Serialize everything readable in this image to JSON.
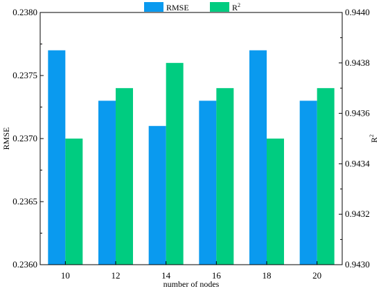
{
  "chart_data": {
    "type": "bar",
    "categories": [
      "10",
      "12",
      "14",
      "16",
      "18",
      "20"
    ],
    "xlabel": "number of nodes",
    "series": [
      {
        "name": "RMSE",
        "axis": "left",
        "color": "#0a9aef",
        "values": [
          0.2377,
          0.2373,
          0.2371,
          0.2373,
          0.2377,
          0.2373
        ]
      },
      {
        "name": "R",
        "name_superscript": "2",
        "axis": "right",
        "color": "#00cc80",
        "values": [
          0.9435,
          0.9437,
          0.9438,
          0.9437,
          0.9435,
          0.9437
        ]
      }
    ],
    "y_left": {
      "label": "RMSE",
      "lim": [
        0.236,
        0.238
      ],
      "ticks": [
        "0.2360",
        "0.2365",
        "0.2370",
        "0.2375",
        "0.2380"
      ]
    },
    "y_right": {
      "label": "R",
      "label_superscript": "2",
      "lim": [
        0.943,
        0.944
      ],
      "ticks": [
        "0.9430",
        "0.9432",
        "0.9434",
        "0.9436",
        "0.9438",
        "0.9440"
      ]
    },
    "legend_position": "top-center",
    "grid": false
  }
}
